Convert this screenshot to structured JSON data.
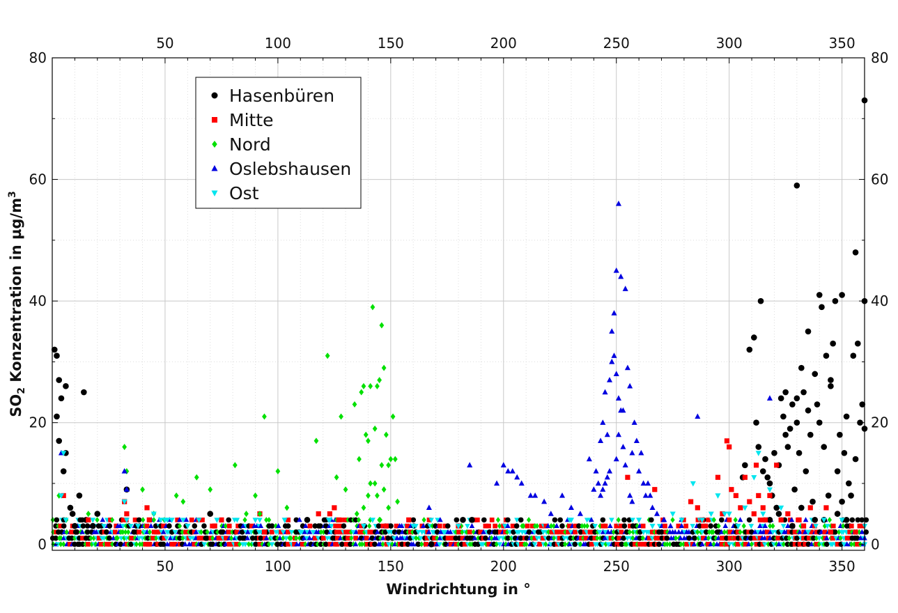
{
  "chart_data": {
    "type": "scatter",
    "xlabel": "Windrichtung in °",
    "ylabel": {
      "prefix": "SO",
      "sub": "2",
      "middle": " Konzentration in µg/m",
      "sup": "3"
    },
    "xlim": [
      0,
      360
    ],
    "ylim": [
      -1,
      80
    ],
    "x_ticks": [
      50,
      100,
      150,
      200,
      250,
      300,
      350
    ],
    "y_ticks": [
      0,
      20,
      40,
      60,
      80
    ],
    "x_minor_step": 10,
    "y_minor_step": 10,
    "grid": true,
    "legend_position": "top-left",
    "series": [
      {
        "name": "Hasenbüren",
        "color": "#000000",
        "marker": "circle",
        "x": [
          1,
          2,
          2,
          3,
          3,
          4,
          5,
          6,
          6,
          8,
          9,
          10,
          12,
          14,
          15,
          18,
          20,
          33,
          70,
          113,
          168,
          182,
          186,
          306,
          307,
          309,
          311,
          312,
          313,
          314,
          315,
          316,
          317,
          318,
          319,
          320,
          321,
          322,
          323,
          324,
          325,
          326,
          327,
          328,
          329,
          330,
          330,
          331,
          332,
          333,
          334,
          335,
          336,
          337,
          338,
          339,
          340,
          341,
          342,
          343,
          344,
          345,
          346,
          347,
          348,
          349,
          350,
          351,
          352,
          353,
          354,
          355,
          356,
          356,
          357,
          358,
          359,
          360,
          360,
          360,
          325,
          330,
          335,
          340,
          345,
          350,
          318,
          322,
          328,
          332,
          338,
          342,
          348,
          352
        ],
        "y": [
          32,
          31,
          21,
          27,
          17,
          24,
          12,
          26,
          15,
          6,
          5,
          3,
          8,
          25,
          4,
          3,
          5,
          9,
          5,
          4,
          0,
          4,
          4,
          11,
          13,
          32,
          34,
          20,
          16,
          40,
          12,
          14,
          11,
          10,
          8,
          15,
          6,
          13,
          24,
          21,
          25,
          16,
          19,
          23,
          9,
          20,
          59,
          15,
          29,
          25,
          12,
          22,
          18,
          7,
          28,
          23,
          41,
          39,
          16,
          31,
          8,
          26,
          33,
          40,
          12,
          18,
          41,
          15,
          21,
          10,
          8,
          31,
          14,
          48,
          33,
          20,
          23,
          40,
          73,
          19,
          18,
          24,
          35,
          20,
          27,
          7,
          4,
          5,
          3,
          6,
          4,
          4,
          5,
          4
        ]
      },
      {
        "name": "Mitte",
        "color": "#ff0000",
        "marker": "square",
        "x": [
          5,
          16,
          32,
          33,
          42,
          43,
          72,
          75,
          92,
          94,
          118,
          123,
          125,
          127,
          148,
          158,
          180,
          255,
          267,
          283,
          286,
          288,
          295,
          297,
          299,
          300,
          301,
          303,
          305,
          307,
          309,
          311,
          312,
          313,
          315,
          316,
          318,
          321,
          323,
          326,
          331,
          333,
          336,
          343,
          345,
          356
        ],
        "y": [
          8,
          4,
          7,
          5,
          6,
          4,
          3,
          4,
          5,
          2,
          5,
          5,
          6,
          4,
          3,
          4,
          3,
          11,
          9,
          7,
          6,
          4,
          11,
          5,
          17,
          16,
          9,
          8,
          6,
          11,
          7,
          5,
          13,
          8,
          6,
          4,
          8,
          13,
          4,
          5,
          4,
          3,
          6,
          6,
          2,
          2
        ]
      },
      {
        "name": "Nord",
        "color": "#00e000",
        "marker": "diamond",
        "x": [
          3,
          16,
          32,
          33,
          40,
          45,
          55,
          58,
          64,
          70,
          81,
          86,
          90,
          92,
          94,
          100,
          104,
          117,
          122,
          126,
          128,
          130,
          134,
          136,
          137,
          138,
          139,
          140,
          141,
          142,
          143,
          144,
          145,
          146,
          147,
          148,
          149,
          150,
          151,
          152,
          153,
          141,
          143,
          144,
          146,
          138,
          140,
          147,
          149,
          135,
          145
        ],
        "y": [
          8,
          5,
          16,
          12,
          9,
          5,
          8,
          7,
          11,
          9,
          13,
          5,
          8,
          5,
          21,
          12,
          6,
          17,
          31,
          11,
          21,
          9,
          23,
          14,
          25,
          26,
          18,
          17,
          26,
          39,
          10,
          26,
          27,
          36,
          29,
          18,
          13,
          14,
          21,
          14,
          7,
          10,
          19,
          8,
          13,
          6,
          8,
          9,
          6,
          5,
          4
        ]
      },
      {
        "name": "Oslebshausen",
        "color": "#0000e0",
        "marker": "triangle-up",
        "x": [
          4,
          32,
          33,
          167,
          185,
          197,
          200,
          202,
          204,
          206,
          208,
          212,
          214,
          218,
          221,
          226,
          230,
          234,
          238,
          240,
          241,
          242,
          243,
          244,
          245,
          246,
          247,
          248,
          249,
          250,
          251,
          252,
          253,
          254,
          255,
          256,
          257,
          258,
          259,
          260,
          261,
          262,
          263,
          264,
          265,
          266,
          268,
          271,
          274,
          248,
          249,
          250,
          251,
          252,
          253,
          250,
          251,
          247,
          246,
          245,
          244,
          254,
          256,
          243,
          257,
          286,
          318
        ],
        "y": [
          15,
          12,
          9,
          6,
          13,
          10,
          13,
          12,
          12,
          11,
          10,
          8,
          8,
          7,
          5,
          8,
          6,
          5,
          14,
          9,
          12,
          10,
          17,
          20,
          25,
          18,
          27,
          30,
          38,
          45,
          56,
          44,
          22,
          42,
          29,
          26,
          15,
          20,
          17,
          12,
          15,
          10,
          8,
          10,
          8,
          6,
          5,
          4,
          3,
          35,
          31,
          28,
          24,
          22,
          16,
          14,
          18,
          12,
          11,
          10,
          9,
          13,
          8,
          8,
          7,
          21,
          24
        ]
      },
      {
        "name": "Ost",
        "color": "#00e5ee",
        "marker": "triangle-down",
        "x": [
          4,
          5,
          6,
          18,
          32,
          33,
          38,
          45,
          48,
          50,
          51,
          53,
          60,
          65,
          73,
          90,
          103,
          110,
          123,
          138,
          142,
          160,
          180,
          230,
          260,
          266,
          275,
          279,
          284,
          288,
          292,
          295,
          298,
          300,
          304,
          307,
          311,
          313,
          315,
          318,
          323,
          335,
          342,
          350
        ],
        "y": [
          8,
          15,
          4,
          4,
          7,
          4,
          3,
          5,
          4,
          4,
          4,
          4,
          3,
          4,
          4,
          4,
          4,
          2,
          4,
          3,
          4,
          3,
          3,
          4,
          4,
          3,
          5,
          4,
          10,
          4,
          5,
          8,
          5,
          5,
          3,
          6,
          11,
          15,
          5,
          9,
          6,
          2,
          4,
          4
        ]
      }
    ],
    "dense_band": {
      "y_levels": [
        0,
        1,
        2,
        3,
        4
      ],
      "x_range": [
        0,
        360
      ]
    }
  }
}
